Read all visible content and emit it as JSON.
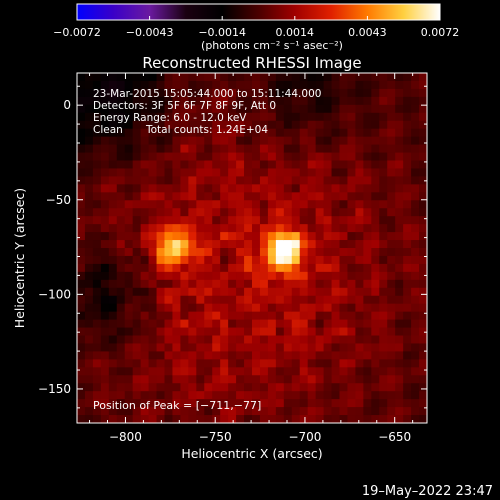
{
  "colorbar": {
    "ticks": [
      "-0.0072",
      "-0.0043",
      "-0.0014",
      "0.0014",
      "0.0043",
      "0.0072"
    ],
    "unit_label": "(photons cm⁻² s⁻¹ asec⁻²)",
    "range": [
      -0.0072,
      0.0072
    ],
    "colormap": [
      "#0000ff",
      "#3a00c8",
      "#6a1aa0",
      "#1a0010",
      "#000000",
      "#4a0000",
      "#a00000",
      "#e02000",
      "#ff7a00",
      "#ffd040",
      "#ffffff"
    ]
  },
  "chart_data": {
    "type": "heatmap",
    "title": "Reconstructed RHESSI Image",
    "xlabel": "Heliocentric X (arcsec)",
    "ylabel": "Heliocentric Y (arcsec)",
    "xlim": [
      -827,
      -632
    ],
    "ylim": [
      -168,
      17
    ],
    "x_ticks": [
      -800,
      -750,
      -700,
      -650
    ],
    "x_tick_labels": [
      "−800",
      "−750",
      "−700",
      "−650"
    ],
    "y_ticks": [
      0,
      -50,
      -100,
      -150
    ],
    "y_tick_labels": [
      "0",
      "−50",
      "−100",
      "−150"
    ],
    "sources": [
      {
        "x": -711,
        "y": -77,
        "peak": 0.0072
      },
      {
        "x": -773,
        "y": -75,
        "peak": 0.0052
      }
    ],
    "annotations": [
      "23-Mar-2015 15:05:44.000 to 15:11:44.000",
      "Detectors: 3F 5F 6F 7F 8F 9F, Att 0",
      "Energy Range: 6.0 - 12.0 keV",
      "Clean",
      "Total counts: 1.24E+04",
      "Position of Peak = [−711,−77]"
    ]
  },
  "timestamp": "19–May–2022 23:47"
}
